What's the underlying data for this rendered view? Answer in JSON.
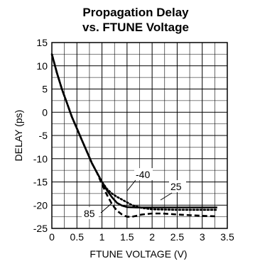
{
  "chart_data": {
    "type": "line",
    "title": "Propagation Delay",
    "subtitle": "vs. FTUNE Voltage",
    "xlabel": "FTUNE VOLTAGE (V)",
    "ylabel": "DELAY (ps)",
    "xlim": [
      0,
      3.5
    ],
    "ylim": [
      -25,
      15
    ],
    "x_ticks": [
      "0",
      "0.5",
      "1",
      "1.5",
      "2",
      "2.5",
      "3",
      "3.5"
    ],
    "y_ticks": [
      "15",
      "10",
      "5",
      "0",
      "-5",
      "-10",
      "-15",
      "-20",
      "-25"
    ],
    "grid": true,
    "series": [
      {
        "name": "25",
        "style": "solid",
        "x": [
          0,
          0.1,
          0.2,
          0.3,
          0.4,
          0.5,
          0.6,
          0.7,
          0.8,
          0.9,
          1.0,
          1.1,
          1.2,
          1.3,
          1.4,
          1.5,
          1.7,
          2.0,
          2.5,
          3.0,
          3.3
        ],
        "y": [
          12.5,
          8.5,
          5,
          2,
          -1,
          -3.5,
          -6,
          -8.5,
          -11,
          -13,
          -15,
          -16.8,
          -18.3,
          -19.5,
          -20.1,
          -20.4,
          -20.5,
          -20.5,
          -20.5,
          -20.5,
          -20.5
        ]
      },
      {
        "name": "-40",
        "style": "dotted",
        "x": [
          0,
          0.1,
          0.2,
          0.3,
          0.4,
          0.5,
          0.6,
          0.7,
          0.8,
          0.9,
          1.0,
          1.1,
          1.2,
          1.3,
          1.4,
          1.5,
          1.6,
          1.8,
          2.0,
          2.5,
          3.0,
          3.3
        ],
        "y": [
          12.5,
          8.5,
          5,
          2,
          -1,
          -3.5,
          -6,
          -8.5,
          -11,
          -13,
          -15,
          -16.5,
          -17.5,
          -18.2,
          -18.8,
          -19.4,
          -20,
          -20.6,
          -20.9,
          -21,
          -21,
          -21
        ]
      },
      {
        "name": "85",
        "style": "dashed",
        "x": [
          0,
          0.1,
          0.2,
          0.3,
          0.4,
          0.5,
          0.6,
          0.7,
          0.8,
          0.9,
          1.0,
          1.1,
          1.2,
          1.3,
          1.4,
          1.5,
          1.6,
          1.8,
          2.0,
          2.2,
          2.5,
          3.0,
          3.3
        ],
        "y": [
          12.5,
          8.5,
          5,
          2,
          -1,
          -3.5,
          -6,
          -8.5,
          -11,
          -13,
          -15.5,
          -17.8,
          -19.8,
          -21.2,
          -22,
          -22.5,
          -22.5,
          -22,
          -21.8,
          -21.8,
          -22,
          -22.3,
          -22.4
        ]
      }
    ],
    "annotations": [
      "-40",
      "25",
      "85"
    ]
  }
}
